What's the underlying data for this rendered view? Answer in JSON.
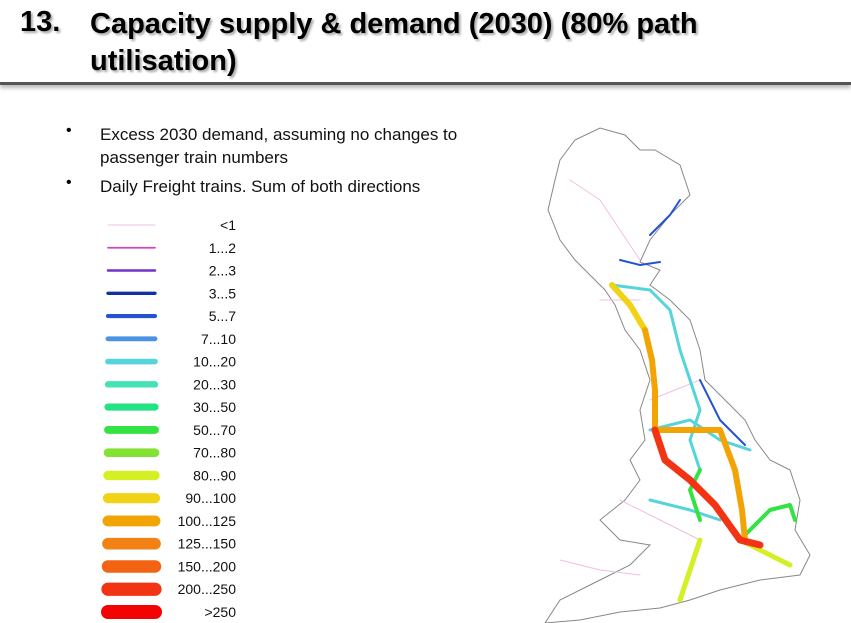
{
  "header": {
    "number": "13.",
    "title": "Capacity supply & demand (2030) (80% path utilisation)"
  },
  "bullets": [
    "Excess 2030 demand, assuming no changes to passenger train numbers",
    "Daily Freight trains. Sum of both directions"
  ],
  "legend": [
    {
      "label": "<1",
      "color": "#f2bde3"
    },
    {
      "label": "1...2",
      "color": "#d044c4"
    },
    {
      "label": "2...3",
      "color": "#7034c4"
    },
    {
      "label": "3...5",
      "color": "#1232a4"
    },
    {
      "label": "5...7",
      "color": "#2452d2"
    },
    {
      "label": "7...10",
      "color": "#4c92e2"
    },
    {
      "label": "10...20",
      "color": "#56d4dc"
    },
    {
      "label": "20...30",
      "color": "#44e2b4"
    },
    {
      "label": "30...50",
      "color": "#22e284"
    },
    {
      "label": "50...70",
      "color": "#34e244"
    },
    {
      "label": "70...80",
      "color": "#84e234"
    },
    {
      "label": "80...90",
      "color": "#d4f024"
    },
    {
      "label": "90...100",
      "color": "#f2d214"
    },
    {
      "label": "100...125",
      "color": "#f2a404"
    },
    {
      "label": "125...150",
      "color": "#f28214"
    },
    {
      "label": "150...200",
      "color": "#f26414"
    },
    {
      "label": "200...250",
      "color": "#f23414"
    },
    {
      "label": ">250",
      "color": "#f20404"
    }
  ]
}
